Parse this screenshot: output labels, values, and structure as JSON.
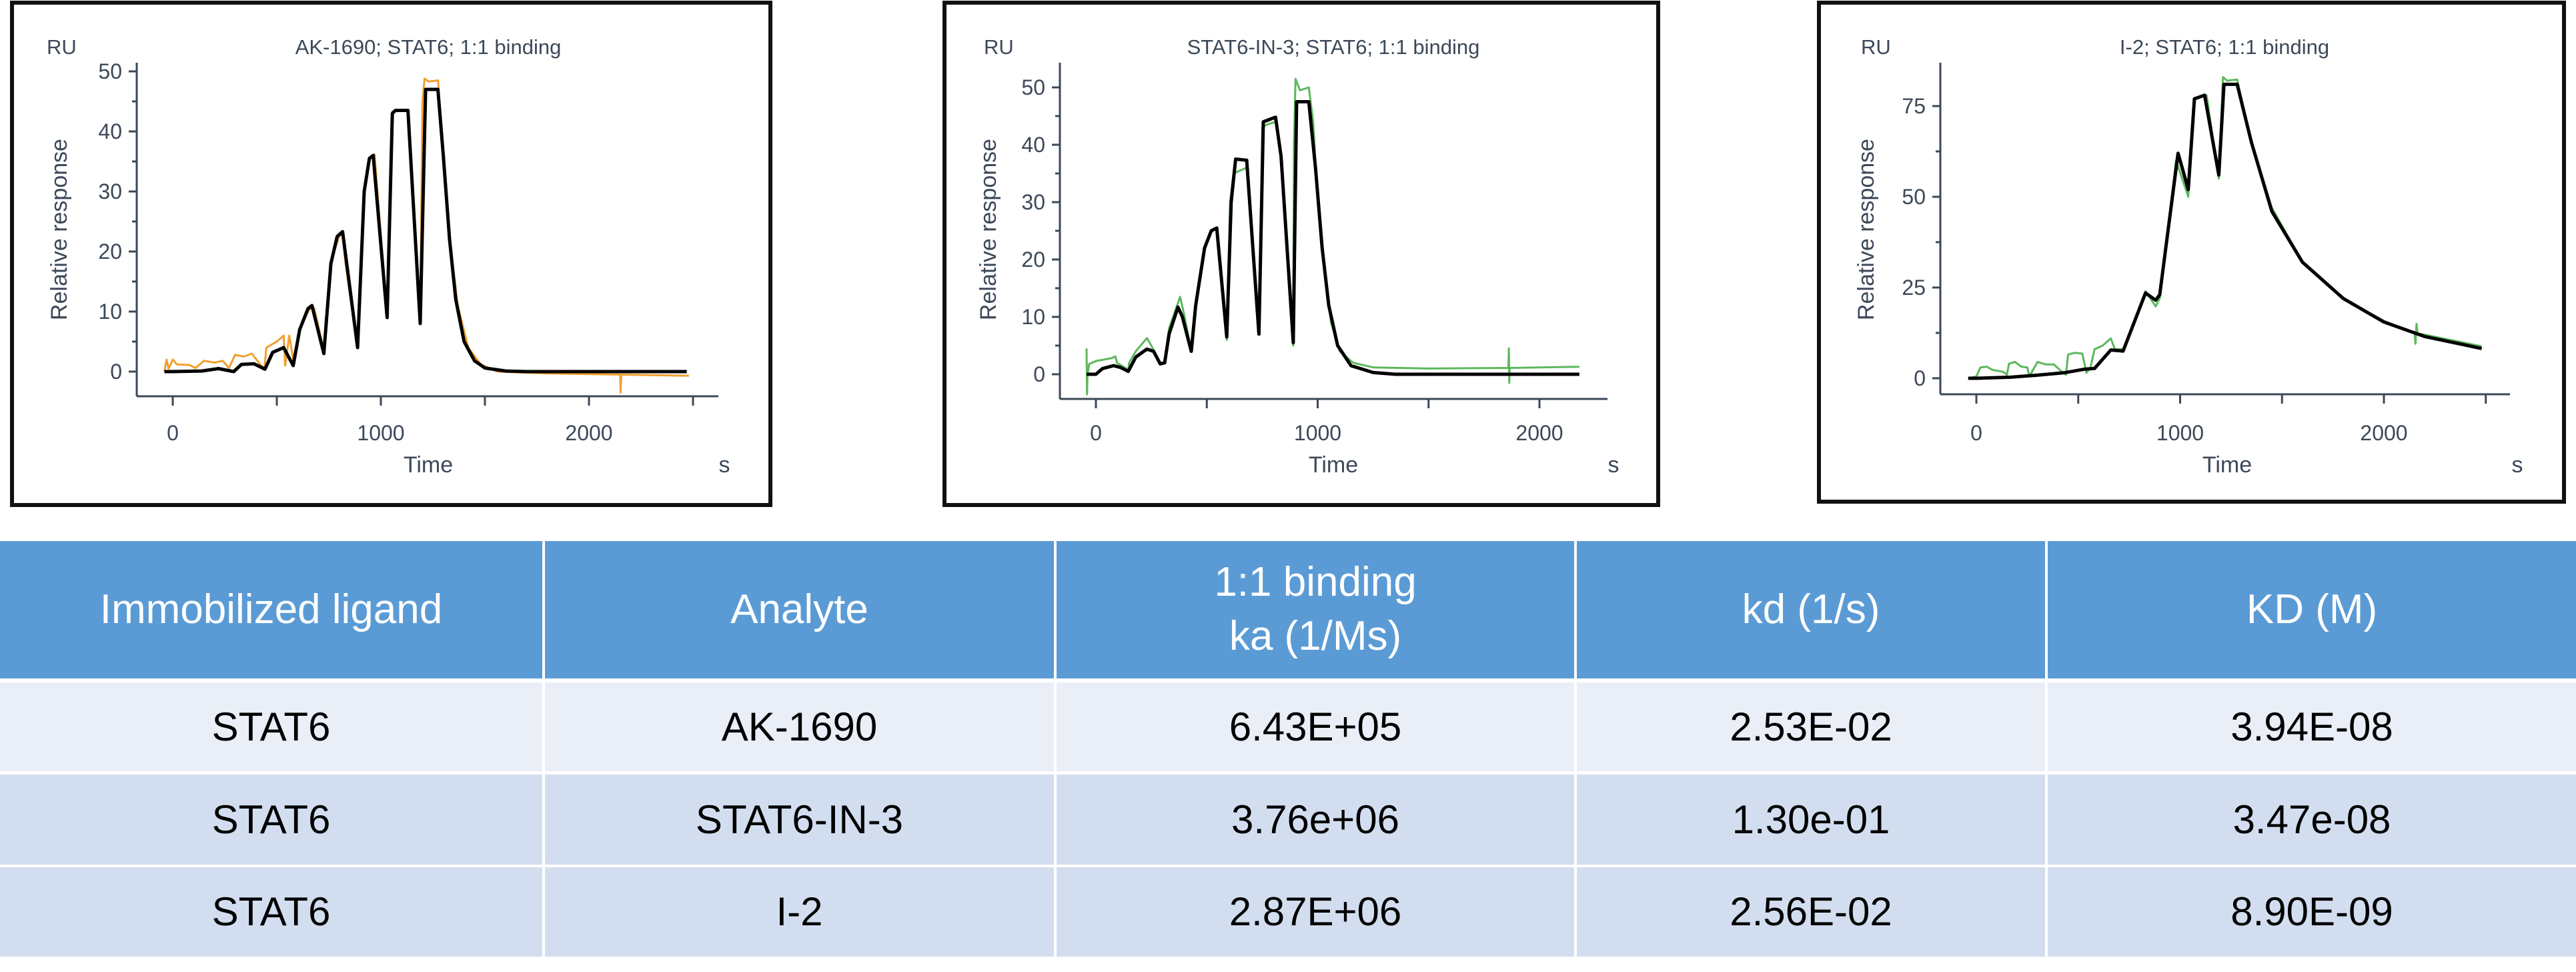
{
  "chart_data": [
    {
      "type": "line",
      "title": "AK-1690; STAT6; 1:1 binding",
      "y_unit": "RU",
      "ylabel": "Relative response",
      "xlabel": "Time",
      "x_unit": "s",
      "xlim": [
        -80,
        2600
      ],
      "ylim": [
        -4,
        54
      ],
      "xticks": [
        0,
        1000,
        2000
      ],
      "yticks": [
        0,
        10,
        20,
        30,
        40,
        50
      ],
      "grid": false,
      "series": [
        {
          "color": "#f0a030",
          "role": "measured",
          "values": [
            [
              -40,
              0
            ],
            [
              -30,
              2
            ],
            [
              -20,
              0.5
            ],
            [
              0,
              2
            ],
            [
              20,
              1.2
            ],
            [
              80,
              1.1
            ],
            [
              110,
              0.6
            ],
            [
              150,
              1.8
            ],
            [
              200,
              1.5
            ],
            [
              240,
              1.8
            ],
            [
              270,
              0.6
            ],
            [
              300,
              2.8
            ],
            [
              340,
              2.5
            ],
            [
              380,
              3
            ],
            [
              420,
              1.2
            ],
            [
              440,
              0.5
            ],
            [
              450,
              4
            ],
            [
              500,
              5
            ],
            [
              533,
              6
            ],
            [
              540,
              1
            ],
            [
              560,
              6
            ],
            [
              579,
              2
            ],
            [
              610,
              7
            ],
            [
              650,
              10
            ],
            [
              669,
              10.8
            ],
            [
              680,
              10.5
            ],
            [
              726,
              3.5
            ],
            [
              760,
              18.5
            ],
            [
              800,
              22.5
            ],
            [
              816,
              23
            ],
            [
              830,
              18
            ],
            [
              888,
              4
            ],
            [
              920,
              30
            ],
            [
              945,
              35.5
            ],
            [
              970,
              36.2
            ],
            [
              1030,
              9
            ],
            [
              1055,
              43.3
            ],
            [
              1130,
              43.5
            ],
            [
              1189,
              10
            ],
            [
              1200,
              45
            ],
            [
              1210,
              48.8
            ],
            [
              1230,
              48.3
            ],
            [
              1275,
              48.5
            ],
            [
              1290,
              40
            ],
            [
              1330,
              22
            ],
            [
              1370,
              11
            ],
            [
              1420,
              4
            ],
            [
              1480,
              1.2
            ],
            [
              1560,
              0
            ],
            [
              1800,
              -0.3
            ],
            [
              2150,
              -0.5
            ],
            [
              2152,
              -3.5
            ],
            [
              2155,
              -0.5
            ],
            [
              2480,
              -0.7
            ]
          ]
        },
        {
          "color": "#000000",
          "role": "fit",
          "values": [
            [
              -40,
              0
            ],
            [
              0,
              0
            ],
            [
              140,
              0.1
            ],
            [
              220,
              0.5
            ],
            [
              293,
              0
            ],
            [
              330,
              1.2
            ],
            [
              390,
              1.3
            ],
            [
              443,
              0.4
            ],
            [
              480,
              3.2
            ],
            [
              533,
              4
            ],
            [
              579,
              1
            ],
            [
              610,
              7
            ],
            [
              650,
              10.5
            ],
            [
              669,
              11
            ],
            [
              726,
              3
            ],
            [
              760,
              18
            ],
            [
              790,
              22.5
            ],
            [
              816,
              23.3
            ],
            [
              888,
              4
            ],
            [
              920,
              30
            ],
            [
              945,
              35.5
            ],
            [
              963,
              36
            ],
            [
              1030,
              9
            ],
            [
              1055,
              43
            ],
            [
              1070,
              43.5
            ],
            [
              1130,
              43.5
            ],
            [
              1189,
              8
            ],
            [
              1215,
              47
            ],
            [
              1274,
              47
            ],
            [
              1300,
              36
            ],
            [
              1330,
              22
            ],
            [
              1360,
              12
            ],
            [
              1400,
              5
            ],
            [
              1450,
              1.8
            ],
            [
              1500,
              0.6
            ],
            [
              1600,
              0.1
            ],
            [
              1700,
              0
            ],
            [
              2470,
              0
            ]
          ]
        }
      ]
    },
    {
      "type": "line",
      "title": "STAT6-IN-3; STAT6; 1:1 binding",
      "y_unit": "RU",
      "ylabel": "Relative response",
      "xlabel": "Time",
      "x_unit": "s",
      "xlim": [
        -80,
        2300
      ],
      "ylim": [
        -4,
        54
      ],
      "xticks": [
        0,
        1000,
        2000
      ],
      "yticks": [
        0,
        10,
        20,
        30,
        40,
        50
      ],
      "grid": false,
      "series": [
        {
          "color": "#5cb85c",
          "role": "measured",
          "values": [
            [
              -42,
              4.5
            ],
            [
              -40,
              -3.5
            ],
            [
              -38,
              0
            ],
            [
              -30,
              1.8
            ],
            [
              0,
              2.3
            ],
            [
              70,
              2.8
            ],
            [
              88,
              3.1
            ],
            [
              95,
              2
            ],
            [
              146,
              0.8
            ],
            [
              150,
              2
            ],
            [
              180,
              4
            ],
            [
              230,
              6.3
            ],
            [
              250,
              5
            ],
            [
              290,
              2
            ],
            [
              310,
              2
            ],
            [
              330,
              8
            ],
            [
              380,
              13.5
            ],
            [
              400,
              10
            ],
            [
              430,
              4
            ],
            [
              450,
              12
            ],
            [
              490,
              22
            ],
            [
              520,
              25
            ],
            [
              545,
              25.5
            ],
            [
              590,
              6
            ],
            [
              605,
              30
            ],
            [
              620,
              35
            ],
            [
              680,
              36
            ],
            [
              735,
              7
            ],
            [
              750,
              43
            ],
            [
              770,
              43.5
            ],
            [
              810,
              44
            ],
            [
              830,
              40
            ],
            [
              890,
              5
            ],
            [
              893,
              40
            ],
            [
              900,
              51.5
            ],
            [
              920,
              49.5
            ],
            [
              960,
              50
            ],
            [
              980,
              44
            ],
            [
              1000,
              30
            ],
            [
              1030,
              18
            ],
            [
              1060,
              9
            ],
            [
              1100,
              4
            ],
            [
              1160,
              2
            ],
            [
              1250,
              1.2
            ],
            [
              1500,
              1
            ],
            [
              1860,
              1.1
            ],
            [
              1862,
              4.5
            ],
            [
              1864,
              -1.5
            ],
            [
              1866,
              1.1
            ],
            [
              2180,
              1.3
            ]
          ]
        },
        {
          "color": "#000000",
          "role": "fit",
          "values": [
            [
              -42,
              0
            ],
            [
              0,
              0
            ],
            [
              30,
              1.0
            ],
            [
              80,
              1.5
            ],
            [
              110,
              1.2
            ],
            [
              146,
              0.5
            ],
            [
              180,
              3
            ],
            [
              230,
              4.4
            ],
            [
              260,
              4
            ],
            [
              290,
              1.8
            ],
            [
              310,
              2
            ],
            [
              330,
              7
            ],
            [
              370,
              11.7
            ],
            [
              390,
              10
            ],
            [
              430,
              4
            ],
            [
              450,
              12
            ],
            [
              490,
              22
            ],
            [
              520,
              25
            ],
            [
              545,
              25.5
            ],
            [
              590,
              6.5
            ],
            [
              610,
              30
            ],
            [
              630,
              37.5
            ],
            [
              680,
              37.3
            ],
            [
              735,
              7
            ],
            [
              755,
              44
            ],
            [
              810,
              44.8
            ],
            [
              835,
              38
            ],
            [
              890,
              5.5
            ],
            [
              905,
              47.5
            ],
            [
              960,
              47.5
            ],
            [
              990,
              36
            ],
            [
              1020,
              22
            ],
            [
              1050,
              12
            ],
            [
              1090,
              5
            ],
            [
              1150,
              1.5
            ],
            [
              1250,
              0.3
            ],
            [
              1350,
              0
            ],
            [
              2180,
              0
            ]
          ]
        }
      ]
    },
    {
      "type": "line",
      "title": "I-2; STAT6; 1:1 binding",
      "y_unit": "RU",
      "ylabel": "Relative response",
      "xlabel": "Time",
      "x_unit": "s",
      "xlim": [
        -80,
        2600
      ],
      "ylim": [
        -4,
        88
      ],
      "xticks": [
        0,
        1000,
        2000
      ],
      "yticks": [
        0,
        25,
        50,
        75
      ],
      "grid": false,
      "series": [
        {
          "color": "#5cb85c",
          "role": "measured",
          "values": [
            [
              -40,
              0
            ],
            [
              0,
              0.5
            ],
            [
              20,
              3
            ],
            [
              50,
              3.2
            ],
            [
              80,
              2.3
            ],
            [
              130,
              1.8
            ],
            [
              150,
              1
            ],
            [
              160,
              4
            ],
            [
              190,
              4.5
            ],
            [
              220,
              3.2
            ],
            [
              250,
              3
            ],
            [
              260,
              0.5
            ],
            [
              300,
              4.5
            ],
            [
              340,
              3.8
            ],
            [
              380,
              3.8
            ],
            [
              420,
              1.8
            ],
            [
              440,
              1
            ],
            [
              450,
              6.5
            ],
            [
              480,
              7
            ],
            [
              520,
              6.8
            ],
            [
              540,
              1.5
            ],
            [
              560,
              3
            ],
            [
              580,
              8
            ],
            [
              620,
              9
            ],
            [
              660,
              11
            ],
            [
              680,
              8
            ],
            [
              720,
              8
            ],
            [
              780,
              16
            ],
            [
              830,
              24
            ],
            [
              880,
              19.8
            ],
            [
              900,
              22
            ],
            [
              980,
              60
            ],
            [
              1040,
              50
            ],
            [
              1070,
              77
            ],
            [
              1130,
              78
            ],
            [
              1190,
              55
            ],
            [
              1210,
              83
            ],
            [
              1230,
              82
            ],
            [
              1280,
              82.3
            ],
            [
              1350,
              65
            ],
            [
              1450,
              47
            ],
            [
              1600,
              32
            ],
            [
              1800,
              22
            ],
            [
              2000,
              15.8
            ],
            [
              2150,
              12.5
            ],
            [
              2155,
              9.5
            ],
            [
              2160,
              15
            ],
            [
              2165,
              12.4
            ],
            [
              2200,
              12
            ],
            [
              2480,
              8.8
            ]
          ]
        },
        {
          "color": "#000000",
          "role": "fit",
          "values": [
            [
              -40,
              0
            ],
            [
              0,
              0
            ],
            [
              170,
              0.3
            ],
            [
              290,
              0.8
            ],
            [
              430,
              1.5
            ],
            [
              530,
              2.5
            ],
            [
              580,
              2.7
            ],
            [
              660,
              7.8
            ],
            [
              720,
              7.5
            ],
            [
              830,
              23.5
            ],
            [
              880,
              21.5
            ],
            [
              900,
              23
            ],
            [
              990,
              62
            ],
            [
              1040,
              52
            ],
            [
              1070,
              77
            ],
            [
              1120,
              78
            ],
            [
              1190,
              56
            ],
            [
              1215,
              81
            ],
            [
              1280,
              81
            ],
            [
              1350,
              65
            ],
            [
              1450,
              46
            ],
            [
              1600,
              32
            ],
            [
              1800,
              22
            ],
            [
              2000,
              15.5
            ],
            [
              2200,
              11.5
            ],
            [
              2480,
              8.2
            ]
          ]
        }
      ]
    }
  ],
  "table": {
    "headers": [
      "Immobilized ligand",
      "Analyte",
      "1:1 binding",
      "kd (1/s)",
      "KD (M)"
    ],
    "header_ka": "ka (1/Ms)",
    "rows": [
      [
        "STAT6",
        "AK-1690",
        "6.43E+05",
        "2.53E-02",
        "3.94E-08"
      ],
      [
        "STAT6",
        "STAT6-IN-3",
        "3.76e+06",
        "1.30e-01",
        "3.47e-08"
      ],
      [
        "STAT6",
        "I-2",
        "2.87E+06",
        "2.56E-02",
        "8.90E-09"
      ]
    ],
    "colors": {
      "header": "#5b9bd5",
      "row_light": "#e9eef7",
      "row_dark": "#d2def0"
    }
  }
}
